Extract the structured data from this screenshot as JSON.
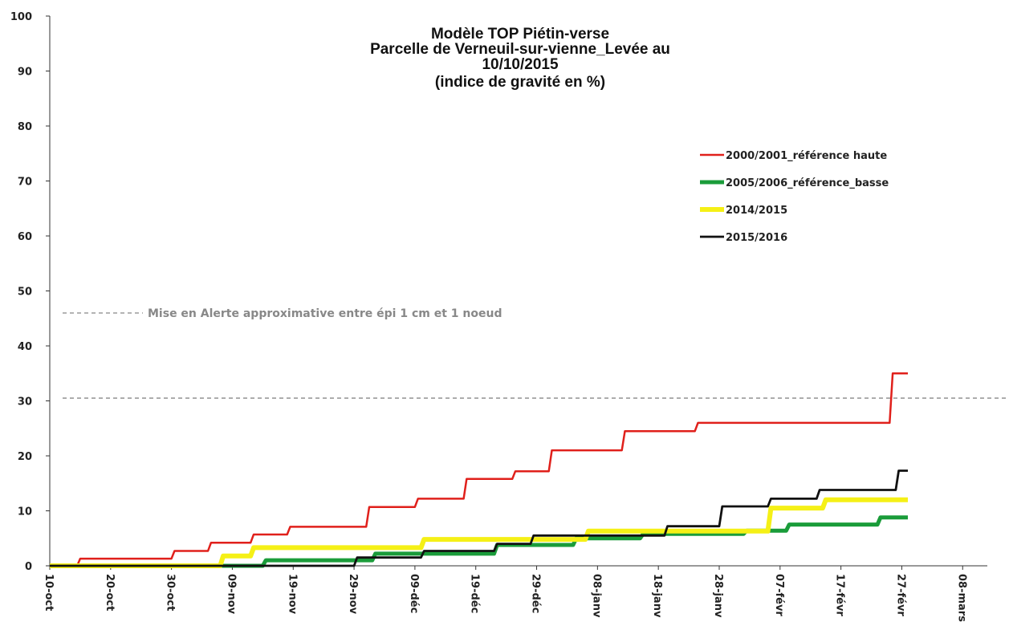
{
  "chart_data": {
    "type": "line",
    "title": "Modèle TOP Piétin-verse",
    "title_lines": [
      "Modèle TOP Piétin-verse",
      "Parcelle de Verneuil-sur-vienne_Levée au",
      "10/10/2015",
      "(indice de gravité en %)"
    ],
    "xlabel": "",
    "ylabel": "",
    "ylim": [
      0,
      100
    ],
    "yticks": [
      0,
      10,
      20,
      30,
      40,
      50,
      60,
      70,
      80,
      90,
      100
    ],
    "xlim_day": [
      0,
      153
    ],
    "xticks": [
      {
        "label": "10-oct",
        "day": 0
      },
      {
        "label": "20-oct",
        "day": 10
      },
      {
        "label": "30-oct",
        "day": 20
      },
      {
        "label": "09-nov",
        "day": 30
      },
      {
        "label": "19-nov",
        "day": 40
      },
      {
        "label": "29-nov",
        "day": 50
      },
      {
        "label": "09-déc",
        "day": 60
      },
      {
        "label": "19-déc",
        "day": 70
      },
      {
        "label": "29-déc",
        "day": 80
      },
      {
        "label": "08-janv",
        "day": 90
      },
      {
        "label": "18-janv",
        "day": 100
      },
      {
        "label": "28-janv",
        "day": 110
      },
      {
        "label": "07-févr",
        "day": 120
      },
      {
        "label": "17-févr",
        "day": 130
      },
      {
        "label": "27-févr",
        "day": 140
      },
      {
        "label": "08-mars",
        "day": 150
      }
    ],
    "grid": false,
    "legend_position": "right",
    "threshold": {
      "value": 30.5,
      "label": "Mise en Alerte approximative entre épi 1 cm et 1 noeud"
    },
    "series": [
      {
        "name": "2000/2001_référence haute",
        "color": "#e0201b",
        "width": 2.5,
        "points": [
          [
            0,
            0
          ],
          [
            4.5,
            0
          ],
          [
            5,
            1.3
          ],
          [
            20,
            1.3
          ],
          [
            20.5,
            2.7
          ],
          [
            26,
            2.7
          ],
          [
            26.5,
            4.2
          ],
          [
            33,
            4.2
          ],
          [
            33.5,
            5.7
          ],
          [
            39,
            5.7
          ],
          [
            39.5,
            7.1
          ],
          [
            52,
            7.1
          ],
          [
            52.5,
            10.7
          ],
          [
            60,
            10.7
          ],
          [
            60.5,
            12.2
          ],
          [
            68,
            12.2
          ],
          [
            68.5,
            15.8
          ],
          [
            76,
            15.8
          ],
          [
            76.5,
            17.2
          ],
          [
            82,
            17.2
          ],
          [
            82.5,
            21.0
          ],
          [
            94,
            21.0
          ],
          [
            94.5,
            24.5
          ],
          [
            106,
            24.5
          ],
          [
            106.5,
            26.0
          ],
          [
            138,
            26.0
          ],
          [
            138.5,
            35.0
          ],
          [
            141,
            35.0
          ]
        ]
      },
      {
        "name": "2005/2006_référence_basse",
        "color": "#1a9c3a",
        "width": 5,
        "points": [
          [
            0,
            0
          ],
          [
            35,
            0
          ],
          [
            35.5,
            1.0
          ],
          [
            53,
            1.0
          ],
          [
            53.5,
            2.2
          ],
          [
            73,
            2.2
          ],
          [
            73.5,
            3.8
          ],
          [
            86,
            3.8
          ],
          [
            86.5,
            5.0
          ],
          [
            97,
            5.0
          ],
          [
            97.5,
            5.8
          ],
          [
            114,
            5.8
          ],
          [
            114.5,
            6.4
          ],
          [
            121,
            6.4
          ],
          [
            121.5,
            7.5
          ],
          [
            136,
            7.5
          ],
          [
            136.5,
            8.8
          ],
          [
            141,
            8.8
          ]
        ]
      },
      {
        "name": "2014/2015",
        "color": "#f5f016",
        "width": 6,
        "points": [
          [
            0,
            0
          ],
          [
            28,
            0
          ],
          [
            28.5,
            1.8
          ],
          [
            33,
            1.8
          ],
          [
            33.5,
            3.3
          ],
          [
            61,
            3.3
          ],
          [
            61.5,
            4.8
          ],
          [
            88,
            4.8
          ],
          [
            88.5,
            6.3
          ],
          [
            118,
            6.3
          ],
          [
            118.5,
            10.5
          ],
          [
            127,
            10.5
          ],
          [
            127.5,
            12.0
          ],
          [
            141,
            12.0
          ]
        ]
      },
      {
        "name": "2015/2016",
        "color": "#111111",
        "width": 2.8,
        "points": [
          [
            0,
            0
          ],
          [
            50,
            0
          ],
          [
            50.5,
            1.5
          ],
          [
            61,
            1.5
          ],
          [
            61.5,
            2.7
          ],
          [
            73,
            2.7
          ],
          [
            73.5,
            4.0
          ],
          [
            79,
            4.0
          ],
          [
            79.5,
            5.5
          ],
          [
            101,
            5.5
          ],
          [
            101.5,
            7.2
          ],
          [
            110,
            7.2
          ],
          [
            110.5,
            10.8
          ],
          [
            118,
            10.8
          ],
          [
            118.5,
            12.2
          ],
          [
            126,
            12.2
          ],
          [
            126.5,
            13.8
          ],
          [
            139,
            13.8
          ],
          [
            139.5,
            17.3
          ],
          [
            141,
            17.3
          ]
        ]
      }
    ]
  }
}
